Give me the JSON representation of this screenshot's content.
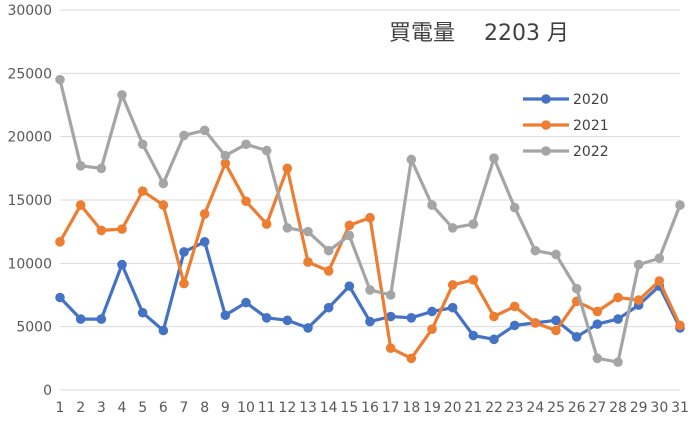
{
  "chart_data": {
    "type": "line",
    "title": "買電量　 2203 月",
    "xlabel": "",
    "ylabel": "",
    "ylim": [
      0,
      30000
    ],
    "yticks": [
      0,
      5000,
      10000,
      15000,
      20000,
      25000,
      30000
    ],
    "grid": true,
    "legend_position": "right",
    "x": [
      1,
      2,
      3,
      4,
      5,
      6,
      7,
      8,
      9,
      10,
      11,
      12,
      13,
      14,
      15,
      16,
      17,
      18,
      19,
      20,
      21,
      22,
      23,
      24,
      25,
      26,
      27,
      28,
      29,
      30,
      31
    ],
    "series": [
      {
        "name": "2020",
        "color": "#4472c4",
        "values": [
          7300,
          5600,
          5600,
          9900,
          6100,
          4700,
          10900,
          11700,
          5900,
          6900,
          5700,
          5500,
          4900,
          6500,
          8200,
          5400,
          5800,
          5700,
          6200,
          6500,
          4300,
          4000,
          5100,
          5300,
          5500,
          4200,
          5200,
          5600,
          6700,
          8200,
          4900
        ]
      },
      {
        "name": "2021",
        "color": "#ed7d31",
        "values": [
          11700,
          14600,
          12600,
          12700,
          15700,
          14600,
          8400,
          13900,
          17900,
          14900,
          13100,
          17500,
          10100,
          9400,
          13000,
          13600,
          3300,
          2500,
          4800,
          8300,
          8700,
          5800,
          6600,
          5300,
          4700,
          7000,
          6200,
          7300,
          7100,
          8600,
          5100
        ]
      },
      {
        "name": "2022",
        "color": "#a5a5a5",
        "values": [
          24500,
          17700,
          17500,
          23300,
          19400,
          16300,
          20100,
          20500,
          18500,
          19400,
          18900,
          12800,
          12500,
          11000,
          12200,
          7900,
          7500,
          18200,
          14600,
          12800,
          13100,
          18300,
          14400,
          11000,
          10700,
          8000,
          2500,
          2200,
          9900,
          10400,
          14600
        ]
      }
    ]
  }
}
